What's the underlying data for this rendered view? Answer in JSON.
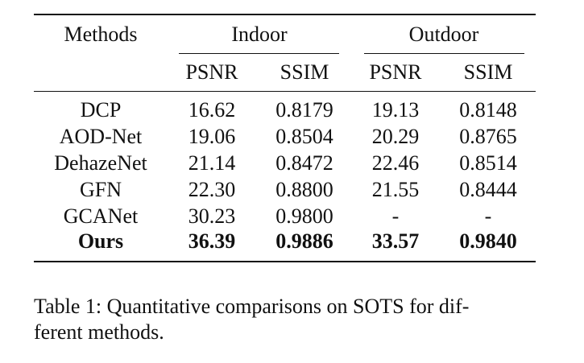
{
  "table": {
    "header": {
      "methods": "Methods",
      "groups": [
        "Indoor",
        "Outdoor"
      ],
      "metrics": [
        "PSNR",
        "SSIM",
        "PSNR",
        "SSIM"
      ]
    },
    "rows": [
      [
        "DCP",
        "16.62",
        "0.8179",
        "19.13",
        "0.8148"
      ],
      [
        "AOD-Net",
        "19.06",
        "0.8504",
        "20.29",
        "0.8765"
      ],
      [
        "DehazeNet",
        "21.14",
        "0.8472",
        "22.46",
        "0.8514"
      ],
      [
        "GFN",
        "22.30",
        "0.8800",
        "21.55",
        "0.8444"
      ],
      [
        "GCANet",
        "30.23",
        "0.9800",
        "-",
        "-"
      ],
      [
        "Ours",
        "36.39",
        "0.9886",
        "33.57",
        "0.9840"
      ]
    ]
  },
  "caption": {
    "lines": [
      "Table 1: Quantitative comparisons on SOTS for dif-",
      "ferent methods."
    ]
  }
}
